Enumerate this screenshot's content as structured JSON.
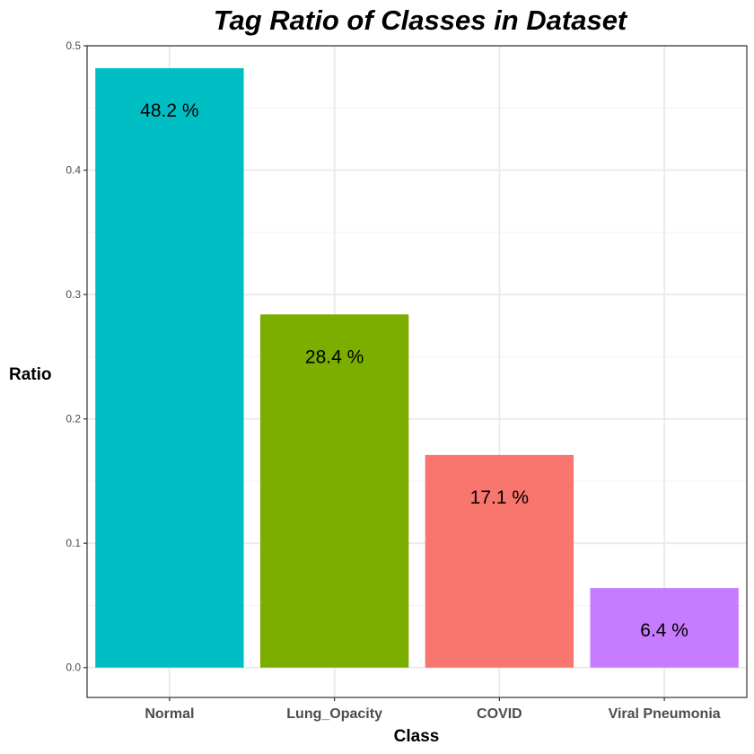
{
  "chart_data": {
    "type": "bar",
    "title": "Tag Ratio of Classes in Dataset",
    "xlabel": "Class",
    "ylabel": "Ratio",
    "categories": [
      "Normal",
      "Lung_Opacity",
      "COVID",
      "Viral Pneumonia"
    ],
    "values": [
      0.482,
      0.284,
      0.171,
      0.064
    ],
    "data_labels": [
      "48.2 %",
      "28.4 %",
      "17.1 %",
      "6.4 %"
    ],
    "colors": [
      "#00BFC4",
      "#7CAE00",
      "#F8766D",
      "#C77CFF"
    ],
    "yticks": [
      0.0,
      0.1,
      0.2,
      0.3,
      0.4,
      0.5
    ],
    "ytick_labels": [
      "0.0",
      "0.1",
      "0.2",
      "0.3",
      "0.4",
      "0.5"
    ],
    "ylim": [
      -0.024,
      0.5
    ],
    "grid": true,
    "legend": "none"
  }
}
